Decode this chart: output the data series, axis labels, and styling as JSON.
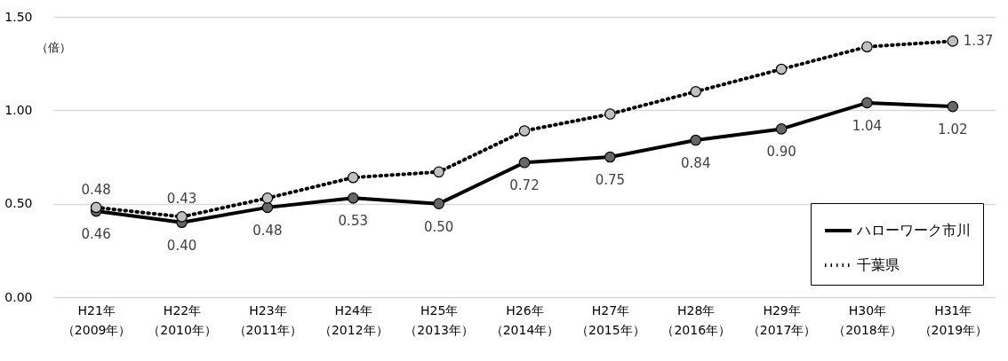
{
  "chart_data": {
    "type": "line",
    "ylabel": "（倍）",
    "categories": [
      "H21年（2009年）",
      "H22年（2010年）",
      "H23年（2011年）",
      "H24年（2012年）",
      "H25年（2013年）",
      "H26年（2014年）",
      "H27年（2015年）",
      "H28年（2016年）",
      "H29年（2017年）",
      "H30年（2018年）",
      "H31年（2019年）"
    ],
    "series": [
      {
        "name": "ハローワーク市川",
        "color": "#000000",
        "line_style": "solid",
        "values": [
          0.46,
          0.4,
          0.48,
          0.53,
          0.5,
          0.72,
          0.75,
          0.84,
          0.9,
          1.04,
          1.02
        ],
        "value_labels": [
          "0.46",
          "0.40",
          "0.48",
          "0.53",
          "0.50",
          "0.72",
          "0.75",
          "0.84",
          "0.90",
          "1.04",
          "1.02"
        ]
      },
      {
        "name": "千葉県",
        "color": "#000000",
        "line_style": "dotted",
        "values": [
          0.48,
          0.43,
          0.53,
          0.64,
          0.67,
          0.89,
          0.98,
          1.1,
          1.22,
          1.34,
          1.37
        ],
        "value_labels": [
          "0.48",
          "0.43",
          null,
          null,
          null,
          null,
          null,
          null,
          null,
          null,
          "1.37"
        ]
      }
    ],
    "ylim": [
      0,
      1.5
    ],
    "yticks": [
      {
        "value": 0,
        "label": "0.00"
      },
      {
        "value": 0.5,
        "label": "0.50"
      },
      {
        "value": 1,
        "label": "1.00"
      },
      {
        "value": 1.5,
        "label": "1.50"
      }
    ],
    "grid": "y",
    "legend": "bottom right",
    "marker": "circle"
  }
}
